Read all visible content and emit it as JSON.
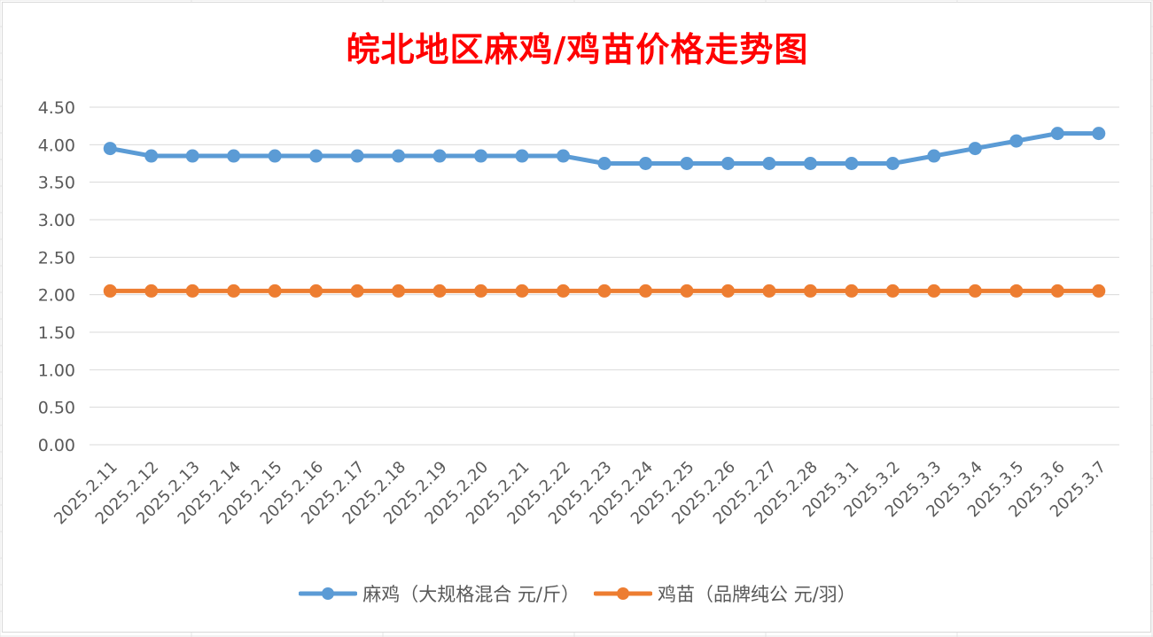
{
  "chart_data": {
    "type": "line",
    "title": "皖北地区麻鸡/鸡苗价格走势图",
    "xlabel": "",
    "ylabel": "",
    "ylim": [
      0,
      4.5
    ],
    "y_ticks": [
      "0.00",
      "0.50",
      "1.00",
      "1.50",
      "2.00",
      "2.50",
      "3.00",
      "3.50",
      "4.00",
      "4.50"
    ],
    "grid": true,
    "legend_position": "bottom",
    "categories": [
      "2025.2.11",
      "2025.2.12",
      "2025.2.13",
      "2025.2.14",
      "2025.2.15",
      "2025.2.16",
      "2025.2.17",
      "2025.2.18",
      "2025.2.19",
      "2025.2.20",
      "2025.2.21",
      "2025.2.22",
      "2025.2.23",
      "2025.2.24",
      "2025.2.25",
      "2025.2.26",
      "2025.2.27",
      "2025.2.28",
      "2025.3.1",
      "2025.3.2",
      "2025.3.3",
      "2025.3.4",
      "2025.3.5",
      "2025.3.6",
      "2025.3.7"
    ],
    "series": [
      {
        "name": "麻鸡（大规格混合 元/斤）",
        "color": "#5b9bd5",
        "values": [
          3.95,
          3.85,
          3.85,
          3.85,
          3.85,
          3.85,
          3.85,
          3.85,
          3.85,
          3.85,
          3.85,
          3.85,
          3.75,
          3.75,
          3.75,
          3.75,
          3.75,
          3.75,
          3.75,
          3.75,
          3.85,
          3.95,
          4.05,
          4.15,
          4.15
        ]
      },
      {
        "name": "鸡苗（品牌纯公 元/羽）",
        "color": "#ed7d31",
        "values": [
          2.05,
          2.05,
          2.05,
          2.05,
          2.05,
          2.05,
          2.05,
          2.05,
          2.05,
          2.05,
          2.05,
          2.05,
          2.05,
          2.05,
          2.05,
          2.05,
          2.05,
          2.05,
          2.05,
          2.05,
          2.05,
          2.05,
          2.05,
          2.05,
          2.05
        ]
      }
    ]
  }
}
